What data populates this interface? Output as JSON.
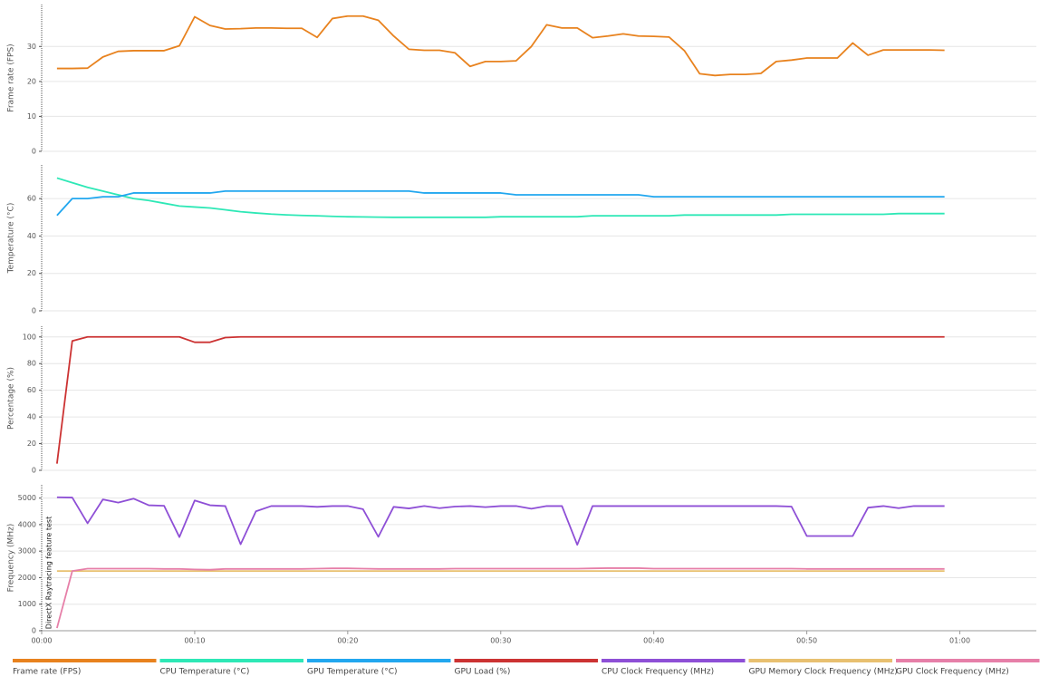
{
  "chart_data": [
    {
      "type": "line",
      "ylabel": "Frame rate (FPS)",
      "xlim": [
        0,
        65
      ],
      "ylim": [
        0,
        42
      ],
      "yticks": [
        0,
        10,
        20,
        30
      ],
      "grid": true,
      "x": [
        1,
        2,
        3,
        4,
        5,
        6,
        7,
        8,
        9,
        10,
        11,
        12,
        13,
        14,
        15,
        16,
        17,
        18,
        19,
        20,
        21,
        22,
        23,
        24,
        25,
        26,
        27,
        28,
        29,
        30,
        31,
        32,
        33,
        34,
        35,
        36,
        37,
        38,
        39,
        40,
        41,
        42,
        43,
        44,
        45,
        46,
        47,
        48,
        49,
        50,
        51,
        52,
        53,
        54,
        55,
        56,
        57,
        58,
        59
      ],
      "series": [
        {
          "name": "Frame rate (FPS)",
          "color": "#e8821e",
          "values": [
            23.7,
            23.7,
            23.8,
            27,
            28.6,
            28.8,
            28.8,
            28.8,
            30.2,
            38.5,
            36,
            35,
            35.1,
            35.3,
            35.3,
            35.2,
            35.2,
            32.6,
            38,
            38.7,
            38.7,
            37.5,
            33,
            29.2,
            28.9,
            28.9,
            28.2,
            24.3,
            25.7,
            25.7,
            25.9,
            30,
            36.2,
            35.3,
            35.3,
            32.5,
            33,
            33.6,
            33,
            32.9,
            32.7,
            28.8,
            22.2,
            21.7,
            22,
            22,
            22.3,
            25.7,
            26.1,
            26.7,
            26.7,
            26.7,
            31,
            27.5,
            29,
            29,
            29,
            29,
            28.9
          ]
        }
      ]
    },
    {
      "type": "line",
      "ylabel": "Temperature (°C)",
      "xlim": [
        0,
        65
      ],
      "ylim": [
        0,
        78
      ],
      "yticks": [
        0,
        20,
        40,
        60
      ],
      "grid": true,
      "x": [
        1,
        2,
        3,
        4,
        5,
        6,
        7,
        8,
        9,
        10,
        11,
        12,
        13,
        14,
        15,
        16,
        17,
        18,
        19,
        20,
        21,
        22,
        23,
        24,
        25,
        26,
        27,
        28,
        29,
        30,
        31,
        32,
        33,
        34,
        35,
        36,
        37,
        38,
        39,
        40,
        41,
        42,
        43,
        44,
        45,
        46,
        47,
        48,
        49,
        50,
        51,
        52,
        53,
        54,
        55,
        56,
        57,
        58,
        59
      ],
      "series": [
        {
          "name": "CPU Temperature (°C)",
          "color": "#2ee8b6",
          "values": [
            71,
            68.5,
            66,
            64,
            62,
            60,
            59,
            57.5,
            56,
            55.5,
            55,
            54,
            53,
            52.3,
            51.7,
            51.3,
            51,
            50.8,
            50.5,
            50.3,
            50.2,
            50.1,
            50,
            50,
            50,
            50,
            50,
            50,
            50,
            50.3,
            50.3,
            50.3,
            50.3,
            50.3,
            50.3,
            50.8,
            50.8,
            50.8,
            50.8,
            50.8,
            50.8,
            51.2,
            51.2,
            51.2,
            51.2,
            51.2,
            51.2,
            51.2,
            51.6,
            51.6,
            51.6,
            51.6,
            51.6,
            51.6,
            51.6,
            52,
            52,
            52,
            52
          ]
        },
        {
          "name": "GPU Temperature (°C)",
          "color": "#22a7ef",
          "values": [
            51,
            60,
            60,
            61,
            61,
            63,
            63,
            63,
            63,
            63,
            63,
            64,
            64,
            64,
            64,
            64,
            64,
            64,
            64,
            64,
            64,
            64,
            64,
            64,
            63,
            63,
            63,
            63,
            63,
            63,
            62,
            62,
            62,
            62,
            62,
            62,
            62,
            62,
            62,
            61,
            61,
            61,
            61,
            61,
            61,
            61,
            61,
            61,
            61,
            61,
            61,
            61,
            61,
            61,
            61,
            61,
            61,
            61,
            61
          ]
        }
      ]
    },
    {
      "type": "line",
      "ylabel": "Percentage (%)",
      "xlim": [
        0,
        65
      ],
      "ylim": [
        0,
        108
      ],
      "yticks": [
        0,
        20,
        40,
        60,
        80,
        100
      ],
      "grid": true,
      "x": [
        1,
        2,
        3,
        4,
        5,
        6,
        7,
        8,
        9,
        10,
        11,
        12,
        13,
        14,
        15,
        16,
        17,
        18,
        19,
        20,
        21,
        22,
        23,
        24,
        25,
        26,
        27,
        28,
        29,
        30,
        31,
        32,
        33,
        34,
        35,
        36,
        37,
        38,
        39,
        40,
        41,
        42,
        43,
        44,
        45,
        46,
        47,
        48,
        49,
        50,
        51,
        52,
        53,
        54,
        55,
        56,
        57,
        58,
        59
      ],
      "series": [
        {
          "name": "GPU Load (%)",
          "color": "#cc3333",
          "values": [
            5,
            97,
            100,
            100,
            100,
            100,
            100,
            100,
            100,
            96,
            96,
            99.5,
            100,
            100,
            100,
            100,
            100,
            100,
            100,
            100,
            100,
            100,
            100,
            100,
            100,
            100,
            100,
            100,
            100,
            100,
            100,
            100,
            100,
            100,
            100,
            100,
            100,
            100,
            100,
            100,
            100,
            100,
            100,
            100,
            100,
            100,
            100,
            100,
            100,
            100,
            100,
            100,
            100,
            100,
            100,
            100,
            100,
            100,
            100
          ]
        }
      ]
    },
    {
      "type": "line",
      "ylabel": "Frequency (MHz)",
      "xlim": [
        0,
        65
      ],
      "ylim": [
        0,
        5500
      ],
      "yticks": [
        0,
        1000,
        2000,
        3000,
        4000,
        5000
      ],
      "grid": true,
      "xticks": [
        {
          "value": 0,
          "label": "00:00"
        },
        {
          "value": 10,
          "label": "00:10"
        },
        {
          "value": 20,
          "label": "00:20"
        },
        {
          "value": 30,
          "label": "00:30"
        },
        {
          "value": 40,
          "label": "00:40"
        },
        {
          "value": 50,
          "label": "00:50"
        },
        {
          "value": 60,
          "label": "01:00"
        }
      ],
      "annotation": "DirectX Raytracing feature test",
      "x": [
        1,
        2,
        3,
        4,
        5,
        6,
        7,
        8,
        9,
        10,
        11,
        12,
        13,
        14,
        15,
        16,
        17,
        18,
        19,
        20,
        21,
        22,
        23,
        24,
        25,
        26,
        27,
        28,
        29,
        30,
        31,
        32,
        33,
        34,
        35,
        36,
        37,
        38,
        39,
        40,
        41,
        42,
        43,
        44,
        45,
        46,
        47,
        48,
        49,
        50,
        51,
        52,
        53,
        54,
        55,
        56,
        57,
        58,
        59
      ],
      "series": [
        {
          "name": "CPU Clock Frequency (MHz)",
          "color": "#8e4fd6",
          "values": [
            5030,
            5020,
            4050,
            4950,
            4830,
            4980,
            4730,
            4710,
            3530,
            4910,
            4730,
            4700,
            3260,
            4500,
            4700,
            4700,
            4700,
            4670,
            4700,
            4700,
            4580,
            3540,
            4670,
            4610,
            4700,
            4620,
            4680,
            4700,
            4660,
            4700,
            4700,
            4600,
            4700,
            4700,
            3240,
            4700,
            4700,
            4700,
            4700,
            4700,
            4700,
            4700,
            4700,
            4700,
            4700,
            4700,
            4700,
            4700,
            4680,
            3570,
            3570,
            3570,
            3570,
            4640,
            4700,
            4620,
            4700,
            4700,
            4700
          ]
        },
        {
          "name": "GPU Memory Clock Frequency (MHz)",
          "color": "#e8c070",
          "values": [
            2250,
            2250,
            2250,
            2250,
            2250,
            2250,
            2250,
            2250,
            2250,
            2250,
            2250,
            2250,
            2250,
            2250,
            2250,
            2250,
            2250,
            2250,
            2250,
            2250,
            2250,
            2250,
            2250,
            2250,
            2250,
            2250,
            2250,
            2250,
            2250,
            2250,
            2250,
            2250,
            2250,
            2250,
            2250,
            2250,
            2250,
            2250,
            2250,
            2250,
            2250,
            2250,
            2250,
            2250,
            2250,
            2250,
            2250,
            2250,
            2250,
            2250,
            2250,
            2250,
            2250,
            2250,
            2250,
            2250,
            2250,
            2250,
            2250
          ]
        },
        {
          "name": "GPU Clock Frequency (MHz)",
          "color": "#e67fa8",
          "values": [
            100,
            2250,
            2340,
            2340,
            2340,
            2340,
            2340,
            2330,
            2330,
            2310,
            2300,
            2330,
            2330,
            2330,
            2330,
            2330,
            2330,
            2340,
            2350,
            2350,
            2340,
            2330,
            2330,
            2330,
            2330,
            2330,
            2340,
            2340,
            2340,
            2340,
            2340,
            2340,
            2340,
            2340,
            2340,
            2350,
            2360,
            2360,
            2360,
            2340,
            2340,
            2340,
            2340,
            2340,
            2340,
            2340,
            2340,
            2340,
            2340,
            2330,
            2330,
            2330,
            2330,
            2330,
            2330,
            2330,
            2330,
            2330,
            2330
          ]
        }
      ]
    }
  ]
}
